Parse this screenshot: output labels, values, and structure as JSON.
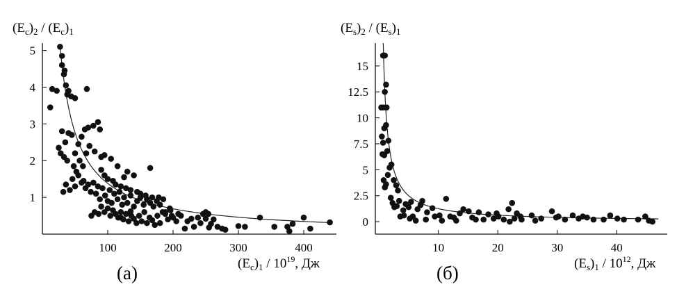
{
  "chart_data": [
    {
      "type": "scatter",
      "panel_label": "(а)",
      "ylabel": {
        "pre": "(E",
        "s1": "c",
        "mid": ")",
        "s2": "2",
        "post": " / (E",
        "s3": "c",
        "post2": ")",
        "s4": "1"
      },
      "xlabel": {
        "pre": "(E",
        "s1": "c",
        "mid": ")",
        "s2": "1",
        "post": " / 10",
        "sup": "19",
        "post2": ", Дж"
      },
      "xlim": [
        0,
        450
      ],
      "ylim": [
        0,
        5.2
      ],
      "x_ticks": [
        100,
        200,
        300,
        400
      ],
      "y_ticks": [
        1,
        2,
        3,
        4,
        5
      ],
      "curve": {
        "form": "a/x",
        "a": 138,
        "x_from": 27,
        "x_to": 442
      },
      "points": [
        [
          27,
          5.1
        ],
        [
          30,
          4.6
        ],
        [
          33,
          4.35
        ],
        [
          38,
          3.8
        ],
        [
          44,
          3.75
        ],
        [
          50,
          3.7
        ],
        [
          22,
          3.9
        ],
        [
          15,
          3.95
        ],
        [
          12,
          3.45
        ],
        [
          68,
          3.95
        ],
        [
          30,
          4.85
        ],
        [
          34,
          4.45
        ],
        [
          40,
          3.9
        ],
        [
          36,
          4.05
        ],
        [
          25,
          2.35
        ],
        [
          30,
          2.8
        ],
        [
          35,
          2.5
        ],
        [
          40,
          2.75
        ],
        [
          45,
          2.7
        ],
        [
          50,
          2.2
        ],
        [
          55,
          2.45
        ],
        [
          60,
          2.65
        ],
        [
          65,
          2.85
        ],
        [
          70,
          2.9
        ],
        [
          78,
          2.95
        ],
        [
          85,
          3.05
        ],
        [
          88,
          2.85
        ],
        [
          28,
          2.2
        ],
        [
          33,
          2.1
        ],
        [
          38,
          2.0
        ],
        [
          48,
          1.85
        ],
        [
          52,
          1.7
        ],
        [
          57,
          2.0
        ],
        [
          62,
          1.85
        ],
        [
          67,
          2.2
        ],
        [
          72,
          2.4
        ],
        [
          80,
          2.25
        ],
        [
          90,
          2.1
        ],
        [
          95,
          2.15
        ],
        [
          105,
          2.05
        ],
        [
          115,
          1.85
        ],
        [
          125,
          1.55
        ],
        [
          130,
          1.7
        ],
        [
          140,
          1.6
        ],
        [
          165,
          1.8
        ],
        [
          32,
          1.15
        ],
        [
          36,
          1.35
        ],
        [
          42,
          1.2
        ],
        [
          46,
          1.5
        ],
        [
          50,
          1.3
        ],
        [
          55,
          1.6
        ],
        [
          60,
          1.4
        ],
        [
          63,
          1.45
        ],
        [
          66,
          1.25
        ],
        [
          70,
          1.35
        ],
        [
          74,
          1.15
        ],
        [
          78,
          1.4
        ],
        [
          82,
          1.1
        ],
        [
          85,
          1.3
        ],
        [
          88,
          0.95
        ],
        [
          92,
          1.25
        ],
        [
          96,
          1.05
        ],
        [
          100,
          0.9
        ],
        [
          103,
          1.2
        ],
        [
          106,
          0.85
        ],
        [
          110,
          1.1
        ],
        [
          115,
          0.95
        ],
        [
          118,
          1.15
        ],
        [
          122,
          0.8
        ],
        [
          125,
          1.0
        ],
        [
          130,
          0.85
        ],
        [
          135,
          1.05
        ],
        [
          140,
          0.75
        ],
        [
          145,
          0.9
        ],
        [
          150,
          1.0
        ],
        [
          155,
          0.8
        ],
        [
          160,
          0.95
        ],
        [
          165,
          0.85
        ],
        [
          170,
          0.75
        ],
        [
          175,
          0.9
        ],
        [
          180,
          0.8
        ],
        [
          185,
          0.95
        ],
        [
          195,
          0.7
        ],
        [
          75,
          0.5
        ],
        [
          80,
          0.6
        ],
        [
          86,
          0.55
        ],
        [
          90,
          0.75
        ],
        [
          95,
          0.6
        ],
        [
          100,
          0.7
        ],
        [
          104,
          0.5
        ],
        [
          108,
          0.65
        ],
        [
          112,
          0.55
        ],
        [
          116,
          0.45
        ],
        [
          120,
          0.6
        ],
        [
          124,
          0.4
        ],
        [
          128,
          0.55
        ],
        [
          132,
          0.35
        ],
        [
          136,
          0.5
        ],
        [
          140,
          0.42
        ],
        [
          144,
          0.3
        ],
        [
          148,
          0.5
        ],
        [
          152,
          0.35
        ],
        [
          156,
          0.6
        ],
        [
          160,
          0.3
        ],
        [
          164,
          0.45
        ],
        [
          168,
          0.38
        ],
        [
          172,
          0.25
        ],
        [
          176,
          0.5
        ],
        [
          180,
          0.3
        ],
        [
          184,
          0.6
        ],
        [
          188,
          0.55
        ],
        [
          192,
          0.4
        ],
        [
          196,
          0.65
        ],
        [
          200,
          0.45
        ],
        [
          205,
          0.35
        ],
        [
          212,
          0.5
        ],
        [
          218,
          0.15
        ],
        [
          222,
          0.35
        ],
        [
          228,
          0.42
        ],
        [
          232,
          0.2
        ],
        [
          238,
          0.45
        ],
        [
          242,
          0.3
        ],
        [
          246,
          0.55
        ],
        [
          250,
          0.42
        ],
        [
          254,
          0.55
        ],
        [
          258,
          0.28
        ],
        [
          262,
          0.4
        ],
        [
          268,
          0.2
        ],
        [
          275,
          0.15
        ],
        [
          280,
          0.12
        ],
        [
          300,
          0.22
        ],
        [
          310,
          0.2
        ],
        [
          333,
          0.45
        ],
        [
          355,
          0.2
        ],
        [
          375,
          0.2
        ],
        [
          378,
          0.08
        ],
        [
          383,
          0.28
        ],
        [
          400,
          0.45
        ],
        [
          410,
          0.15
        ],
        [
          440,
          0.32
        ],
        [
          90,
          1.75
        ],
        [
          95,
          1.6
        ],
        [
          100,
          1.5
        ],
        [
          108,
          1.45
        ],
        [
          112,
          1.35
        ],
        [
          120,
          1.3
        ],
        [
          128,
          1.25
        ],
        [
          135,
          1.2
        ],
        [
          145,
          1.15
        ],
        [
          150,
          1.1
        ],
        [
          158,
          1.05
        ],
        [
          168,
          1.0
        ],
        [
          178,
          1.0
        ],
        [
          188,
          0.6
        ],
        [
          198,
          0.5
        ],
        [
          208,
          0.55
        ],
        [
          250,
          0.6
        ],
        [
          255,
          0.18
        ],
        [
          120,
          0.45
        ],
        [
          135,
          0.62
        ]
      ]
    },
    {
      "type": "scatter",
      "panel_label": "(б)",
      "ylabel": {
        "pre": "(E",
        "s1": "s",
        "mid": ")",
        "s2": "2",
        "post": " / (E",
        "s3": "s",
        "post2": ")",
        "s4": "1"
      },
      "xlabel": {
        "pre": "(E",
        "s1": "s",
        "mid": ")",
        "s2": "1",
        "post": " / 10",
        "sup": "12",
        "post2": ", Дж"
      },
      "xlim": [
        -0.6,
        48.5
      ],
      "ylim": [
        -1.2,
        17.2
      ],
      "x_ticks": [
        10,
        20,
        30,
        40
      ],
      "y_ticks": [
        0,
        2.5,
        5,
        7.5,
        10,
        12.5,
        15
      ],
      "y_tick_labels": [
        "0",
        "2.5",
        "5",
        "7.5",
        "10",
        "12.5",
        "15"
      ],
      "curve": {
        "form": "a/x",
        "a": 12.5,
        "x_from": 0.72,
        "x_to": 47
      },
      "points": [
        [
          0.7,
          16.0
        ],
        [
          1.0,
          16.0
        ],
        [
          0.4,
          11.0
        ],
        [
          0.8,
          11.0
        ],
        [
          1.2,
          13.2
        ],
        [
          1.0,
          12.5
        ],
        [
          1.3,
          11.0
        ],
        [
          0.5,
          8.2
        ],
        [
          0.7,
          7.6
        ],
        [
          0.9,
          9.0
        ],
        [
          1.2,
          9.3
        ],
        [
          1.6,
          7.8
        ],
        [
          0.6,
          6.5
        ],
        [
          0.9,
          6.4
        ],
        [
          1.4,
          6.8
        ],
        [
          0.8,
          4.0
        ],
        [
          1.0,
          3.3
        ],
        [
          1.2,
          3.6
        ],
        [
          1.5,
          4.5
        ],
        [
          1.8,
          5.2
        ],
        [
          2.1,
          5.5
        ],
        [
          2.5,
          4.0
        ],
        [
          2.9,
          3.5
        ],
        [
          3.2,
          3.0
        ],
        [
          2.0,
          2.3
        ],
        [
          2.3,
          1.8
        ],
        [
          2.6,
          1.4
        ],
        [
          3.0,
          1.5
        ],
        [
          3.4,
          2.0
        ],
        [
          4.1,
          1.1
        ],
        [
          4.5,
          1.7
        ],
        [
          5.0,
          1.4
        ],
        [
          5.4,
          1.9
        ],
        [
          5.7,
          0.5
        ],
        [
          6.2,
          0.1
        ],
        [
          7.3,
          2.0
        ],
        [
          8.1,
          0.9
        ],
        [
          7.9,
          0.2
        ],
        [
          9.4,
          0.5
        ],
        [
          10.2,
          0.6
        ],
        [
          10.6,
          0.1
        ],
        [
          11.3,
          2.2
        ],
        [
          12.0,
          0.5
        ],
        [
          12.6,
          0.4
        ],
        [
          13.6,
          0.8
        ],
        [
          14.2,
          1.2
        ],
        [
          15.1,
          1.0
        ],
        [
          15.7,
          0.4
        ],
        [
          16.8,
          0.9
        ],
        [
          17.6,
          0.2
        ],
        [
          18.4,
          0.7
        ],
        [
          19.3,
          0.3
        ],
        [
          20.1,
          0.5
        ],
        [
          21.0,
          0.2
        ],
        [
          21.8,
          1.2
        ],
        [
          22.4,
          1.8
        ],
        [
          22.8,
          0.3
        ],
        [
          23.2,
          0.8
        ],
        [
          24.0,
          0.2
        ],
        [
          25.7,
          0.6
        ],
        [
          27.3,
          0.3
        ],
        [
          29.1,
          1.0
        ],
        [
          30.2,
          0.5
        ],
        [
          31.3,
          0.2
        ],
        [
          32.6,
          0.6
        ],
        [
          33.6,
          0.3
        ],
        [
          35.0,
          0.4
        ],
        [
          36.1,
          0.2
        ],
        [
          37.8,
          0.2
        ],
        [
          38.9,
          0.6
        ],
        [
          40.1,
          0.3
        ],
        [
          43.6,
          0.2
        ],
        [
          44.8,
          0.5
        ],
        [
          45.4,
          0.1
        ],
        [
          46.0,
          0.0
        ],
        [
          3.6,
          0.5
        ],
        [
          4.2,
          0.6
        ],
        [
          5.2,
          0.3
        ],
        [
          6.5,
          1.2
        ],
        [
          7.0,
          1.6
        ],
        [
          9.0,
          1.3
        ],
        [
          13.0,
          0.1
        ],
        [
          16.3,
          0.2
        ],
        [
          19.8,
          0.8
        ],
        [
          22.0,
          0.0
        ],
        [
          23.8,
          0.5
        ],
        [
          26.3,
          0.1
        ],
        [
          29.8,
          0.4
        ],
        [
          34.3,
          0.5
        ],
        [
          41.2,
          0.2
        ]
      ]
    }
  ]
}
